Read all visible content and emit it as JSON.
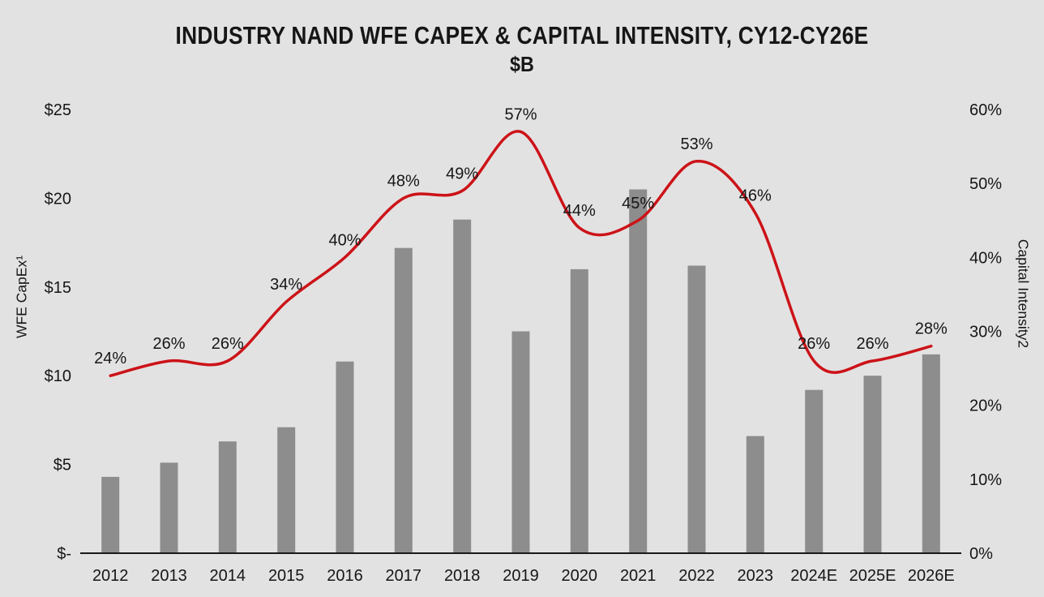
{
  "chart_data": {
    "type": "bar+line",
    "title": "INDUSTRY NAND WFE CAPEX & CAPITAL INTENSITY, CY12-CY26E",
    "subtitle": "$B",
    "categories": [
      "2012",
      "2013",
      "2014",
      "2015",
      "2016",
      "2017",
      "2018",
      "2019",
      "2020",
      "2021",
      "2022",
      "2023",
      "2024E",
      "2025E",
      "2026E"
    ],
    "series": [
      {
        "name": "WFE CapEx ($B)",
        "type": "bar",
        "axis": "left",
        "values": [
          4.3,
          5.1,
          6.3,
          7.1,
          10.8,
          17.2,
          18.8,
          12.5,
          16.0,
          20.5,
          16.2,
          6.6,
          9.2,
          10.0,
          11.2
        ]
      },
      {
        "name": "Capital Intensity (%)",
        "type": "line",
        "axis": "right",
        "values": [
          24,
          26,
          26,
          34,
          40,
          48,
          49,
          57,
          44,
          45,
          53,
          46,
          26,
          26,
          28
        ],
        "point_labels": [
          "24%",
          "26%",
          "26%",
          "34%",
          "40%",
          "48%",
          "49%",
          "57%",
          "44%",
          "45%",
          "53%",
          "46%",
          "26%",
          "26%",
          "28%"
        ]
      }
    ],
    "ylabel_left": "WFE CapEx¹",
    "ylabel_right": "Capital Intensity2",
    "ylim_left": [
      0,
      25
    ],
    "ylim_right": [
      0,
      60
    ],
    "left_tick_labels": [
      "$25",
      "$20",
      "$15",
      "$10",
      "$5",
      "$-"
    ],
    "left_tick_values": [
      25,
      20,
      15,
      10,
      5,
      0
    ],
    "right_tick_labels": [
      "60%",
      "50%",
      "40%",
      "30%",
      "20%",
      "10%",
      "0%"
    ],
    "right_tick_values": [
      60,
      50,
      40,
      30,
      20,
      10,
      0
    ],
    "grid": false,
    "legend": false,
    "smooth_line": true
  },
  "colors": {
    "background": "#e3e2e2",
    "bar": "#8d8d8d",
    "line": "#cc1318",
    "text": "#161616",
    "axis_line": "#1a1a1a"
  }
}
